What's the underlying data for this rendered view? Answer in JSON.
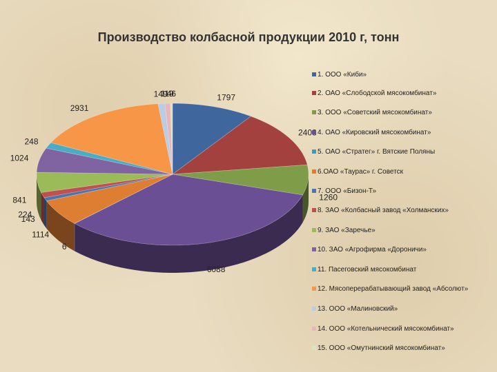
{
  "chart_data": {
    "type": "pie",
    "title": "Производство колбасной продукции 2010 г, тонн",
    "legend_position": "right",
    "series": [
      {
        "name": "1. ООО «Киби»",
        "value": 1797,
        "label": "1797",
        "color": "#3f679e"
      },
      {
        "name": "2. ОАО «Слободской мясокомбинат»",
        "value": 2408,
        "label": "2408",
        "color": "#a3413f"
      },
      {
        "name": "3. ООО «Советский мясокомбинат»",
        "value": 1260,
        "label": "1260",
        "color": "#7f9c48"
      },
      {
        "name": "4. ОАО «Кировский мясокомбинат»",
        "value": 6088,
        "label": "6088",
        "color": "#6b4f94"
      },
      {
        "name": "5. ОАО «Стратег» г. Вятские Поляны",
        "value": 6,
        "label": "6",
        "color": "#3e9ab3"
      },
      {
        "name": "6.ОАО «Таурас» г. Советск",
        "value": 1114,
        "label": "1114",
        "color": "#dd7e33"
      },
      {
        "name": "7. ООО «Бизон-Т»",
        "value": 143,
        "label": "143",
        "color": "#4a75b0"
      },
      {
        "name": "8. ЗАО «Колбасный завод «Холманских»",
        "value": 224,
        "label": "224",
        "color": "#c0504d"
      },
      {
        "name": "9. ЗАО «Заречье»",
        "value": 841,
        "label": "841",
        "color": "#9bbb59"
      },
      {
        "name": "10. ЗАО «Агрофирма «Дороничи»",
        "value": 1024,
        "label": "1024",
        "color": "#8064a2"
      },
      {
        "name": "11. Пасеговский мясокомбинат",
        "value": 248,
        "label": "248",
        "color": "#4bacc6"
      },
      {
        "name": "12. Мясоперерабатывающий завод «Абсолют»",
        "value": 2931,
        "label": "2931",
        "color": "#f79646"
      },
      {
        "name": "13. ООО «Малиновский»",
        "value": 149,
        "label": "149",
        "color": "#b9cde5"
      },
      {
        "name": "14. ООО «Котельнический мясокомбинат»",
        "value": 119,
        "label": "119",
        "color": "#e6b9b8"
      },
      {
        "name": "15. ООО «Омутнинский мясокомбинат»",
        "value": 46,
        "label": "46",
        "color": "#d7e4bd"
      }
    ]
  }
}
